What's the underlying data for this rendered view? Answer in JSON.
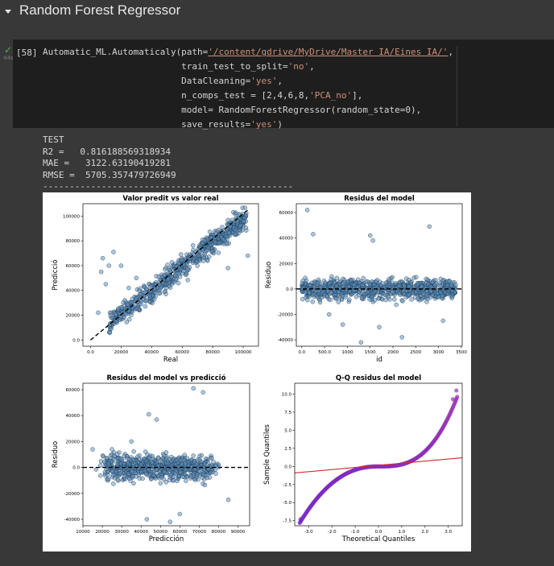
{
  "section": {
    "title": "Random Forest Regressor"
  },
  "cell": {
    "execution_count": "[58]",
    "status_time": "44s",
    "code": {
      "l1_a": "Automatic_ML.Automaticaly(path=",
      "l1_str": "'/content/gdrive/MyDrive/Master IA/Eines IA/'",
      "l1_b": ",",
      "l2_a": "                          train_test_to_split=",
      "l2_str": "'no'",
      "l2_b": ",",
      "l3_a": "                          DataCleaning=",
      "l3_str": "'yes'",
      "l3_b": ",",
      "l4_a": "                          n_comps_test = [2,4,6,8,",
      "l4_str": "'PCA_no'",
      "l4_b": "],",
      "l5": "                          model= RandomForestRegressor(random_state=0),",
      "l6_a": "                          save_results=",
      "l6_str": "'yes'",
      "l6_b": ")"
    }
  },
  "output": {
    "test_label": "TEST",
    "r2": "R2 =   0.816188569318934",
    "mae": "MAE =   3122.63190419281",
    "rmse": "RMSE =  5705.357479726949",
    "separator": "-----------------------------------------------"
  },
  "colors": {
    "scatter_fill": "#5b8db8",
    "scatter_edge": "#1a3550",
    "qq_fill": "#8a3fc0",
    "qq_red": "#d62728"
  },
  "chart_data": [
    {
      "type": "scatter",
      "title": "Valor predit vs valor real",
      "xlabel": "Real",
      "ylabel": "Predicció",
      "xlim": [
        -5000,
        110000
      ],
      "ylim": [
        -5000,
        110000
      ],
      "xticks": [
        0,
        20000,
        40000,
        60000,
        80000,
        100000
      ],
      "yticks": [
        0,
        20000,
        40000,
        60000,
        80000,
        100000
      ],
      "reference_line": {
        "style": "dashed",
        "from": [
          0,
          0
        ],
        "to": [
          103000,
          105000
        ]
      }
    },
    {
      "type": "scatter",
      "title": "Residus del model",
      "xlabel": "id",
      "ylabel": "Residuo",
      "xlim": [
        -120,
        3520
      ],
      "ylim": [
        -45000,
        67000
      ],
      "xticks": [
        0,
        500,
        1000,
        1500,
        2000,
        2500,
        3000,
        3500
      ],
      "yticks": [
        -40000,
        -20000,
        0,
        20000,
        40000,
        60000
      ],
      "reference_line": {
        "style": "dashed",
        "y": 0
      }
    },
    {
      "type": "scatter",
      "title": "Residus del model vs predicció",
      "xlabel": "Predicción",
      "ylabel": "Residuo",
      "xlim": [
        10000,
        96000
      ],
      "ylim": [
        -45000,
        65000
      ],
      "xticks": [
        10000,
        20000,
        30000,
        40000,
        50000,
        60000,
        70000,
        80000,
        90000
      ],
      "yticks": [
        -40000,
        -20000,
        0,
        20000,
        40000,
        60000
      ],
      "reference_line": {
        "style": "dashed",
        "y": 0
      }
    },
    {
      "type": "scatter",
      "title": "Q-Q residus del model",
      "xlabel": "Theoretical Quantiles",
      "ylabel": "Sample Quantiles",
      "xlim": [
        -3.6,
        3.6
      ],
      "ylim": [
        -8.2,
        11.5
      ],
      "xticks": [
        -3,
        -2,
        -1,
        0,
        1,
        2,
        3
      ],
      "yticks": [
        -7.5,
        -5.0,
        -2.5,
        0.0,
        2.5,
        5.0,
        7.5,
        10.0
      ],
      "reference_line": {
        "from": [
          -3.6,
          -0.9
        ],
        "to": [
          3.6,
          1.2
        ]
      }
    }
  ]
}
